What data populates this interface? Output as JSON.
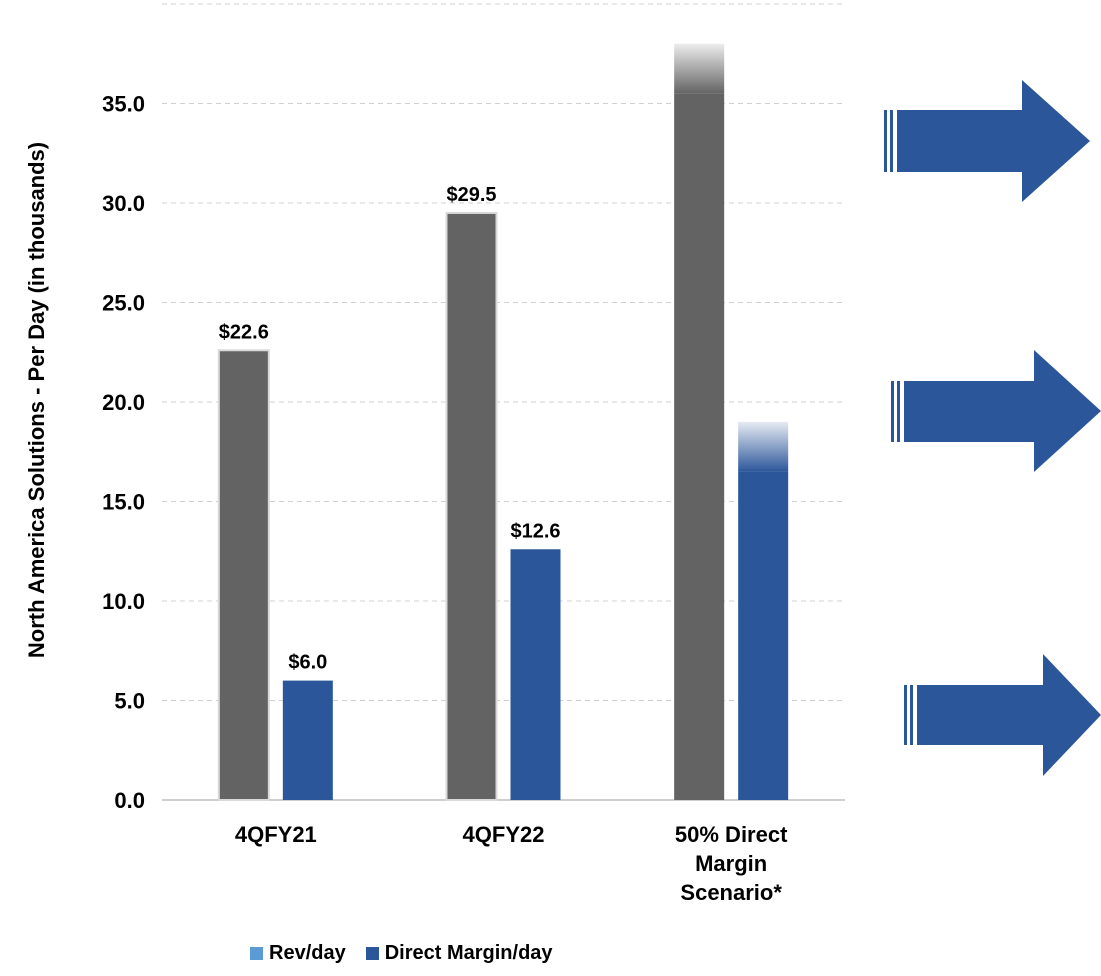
{
  "chart_data": {
    "type": "bar",
    "ylabel": "North America Solutions - Per  Day (in thousands)",
    "ylim": [
      0,
      40
    ],
    "yticks": [
      "0.0",
      "5.0",
      "10.0",
      "15.0",
      "20.0",
      "25.0",
      "30.0",
      "35.0"
    ],
    "grid": true,
    "legend_position": "bottom",
    "categories": [
      [
        "4QFY21"
      ],
      [
        "4QFY22"
      ],
      [
        "50% Direct",
        "Margin",
        "Scenario*"
      ]
    ],
    "series": [
      {
        "name": "Rev/day",
        "color": "#636363",
        "legend_color": "#5b9bd5",
        "values": [
          22.6,
          29.5,
          38.0
        ],
        "labels": [
          "$22.6",
          "$29.5",
          ""
        ],
        "faded_top": [
          false,
          false,
          true
        ]
      },
      {
        "name": "Direct Margin/day",
        "color": "#2c569a",
        "legend_color": "#2c569a",
        "values": [
          6.0,
          12.6,
          19.0
        ],
        "labels": [
          "$6.0",
          "$12.6",
          ""
        ],
        "faded_top": [
          false,
          false,
          true
        ]
      }
    ]
  },
  "side_arrows": {
    "icon": "right-arrow-icon",
    "count": 3,
    "color": "#2c569a"
  }
}
